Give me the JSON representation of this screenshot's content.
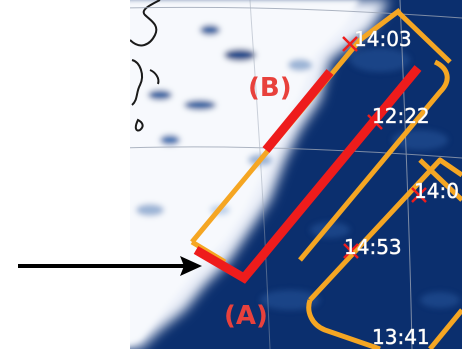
{
  "labels": {
    "segment_b": "(B)",
    "segment_a": "(A)"
  },
  "times": [
    {
      "id": "t1403",
      "text": "14:03"
    },
    {
      "id": "t1222",
      "text": "12:22"
    },
    {
      "id": "t140x",
      "text": "14:0"
    },
    {
      "id": "t1453",
      "text": "14:53"
    },
    {
      "id": "t1341",
      "text": "13:41"
    }
  ],
  "colors": {
    "ocean": "#0b2f6e",
    "cloud": "#e8eef8",
    "swath": "#f5a623",
    "highlight": "#ee1c1c",
    "label_red": "#e8413c",
    "arrow": "#000000",
    "coast": "#1a1a1a",
    "grid": "#9aa3b3"
  }
}
